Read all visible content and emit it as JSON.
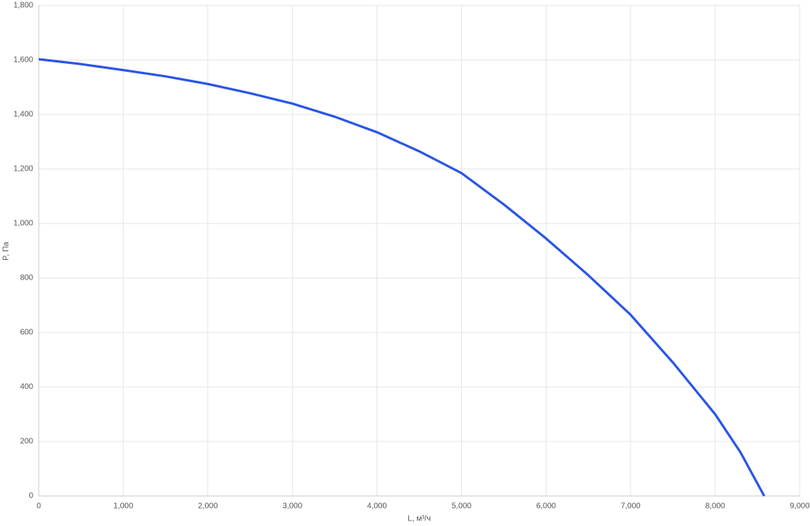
{
  "chart_data": {
    "type": "line",
    "x_label": "L, м³/ч",
    "y_label": "P, Па",
    "x": [
      0,
      500,
      1000,
      1500,
      2000,
      2500,
      3000,
      3500,
      4000,
      4500,
      5000,
      5500,
      6000,
      6500,
      7000,
      7500,
      8000,
      8300,
      8580
    ],
    "series": [
      {
        "name": "P",
        "color": "#2a55e5",
        "values": [
          1603,
          1585,
          1563,
          1540,
          1512,
          1478,
          1440,
          1392,
          1335,
          1265,
          1185,
          1070,
          945,
          810,
          665,
          490,
          300,
          160,
          0
        ]
      }
    ],
    "xlim": [
      0,
      9000
    ],
    "xticks": [
      0,
      {
        "value": 1000,
        "label": "1,000"
      },
      {
        "value": 2000,
        "label": "2,000"
      },
      {
        "value": 3000,
        "label": "3,000"
      },
      {
        "value": 4000,
        "label": "4,000"
      },
      {
        "value": 5000,
        "label": "5,000"
      },
      {
        "value": 6000,
        "label": "6,000"
      },
      {
        "value": 7000,
        "label": "7,000"
      },
      {
        "value": 8000,
        "label": "8,000"
      },
      {
        "value": 9000,
        "label": "9,000"
      }
    ],
    "ylim": [
      0,
      1800
    ],
    "yticks": [
      0,
      200,
      400,
      600,
      800,
      {
        "value": 1000,
        "label": "1,000"
      },
      {
        "value": 1200,
        "label": "1,200"
      },
      {
        "value": 1400,
        "label": "1,400"
      },
      {
        "value": 1600,
        "label": "1,600"
      },
      {
        "value": 1800,
        "label": "1,800"
      }
    ],
    "grid": true
  }
}
